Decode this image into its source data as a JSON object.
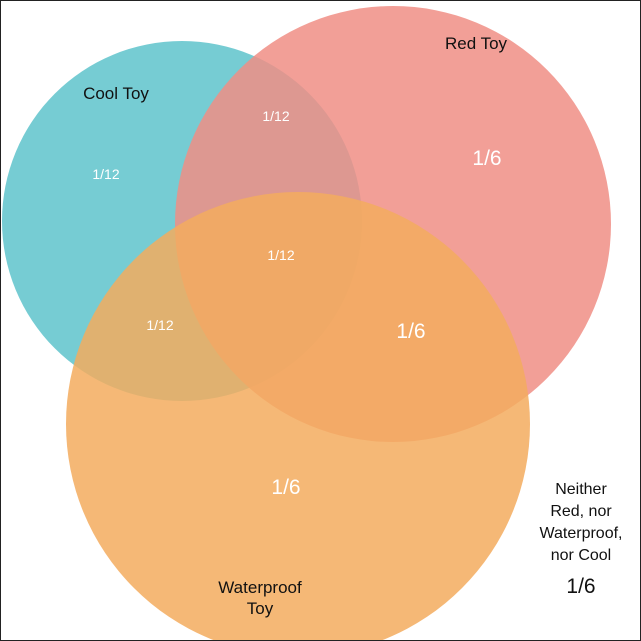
{
  "sets": {
    "cool": {
      "label": "Cool Toy",
      "color": "#5ec3cb"
    },
    "red": {
      "label": "Red Toy",
      "color": "#f08e85"
    },
    "waterproof": {
      "label_line1": "Waterproof",
      "label_line2": "Toy",
      "color": "#f3ac5e"
    }
  },
  "regions": {
    "cool_only": "1/12",
    "cool_and_red": "1/12",
    "all_three": "1/12",
    "cool_and_waterproof": "1/12",
    "red_only": "1/6",
    "red_and_waterproof": "1/6",
    "waterproof_only": "1/6"
  },
  "outside": {
    "lines": [
      "Neither",
      "Red, nor",
      "Waterproof,",
      "nor Cool"
    ],
    "value": "1/6"
  }
}
